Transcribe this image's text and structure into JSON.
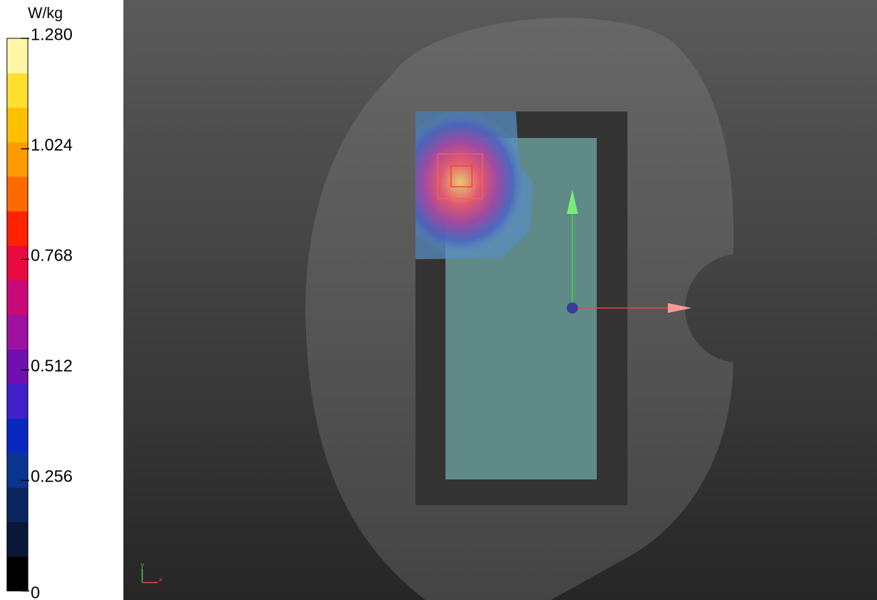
{
  "colorbar": {
    "unit": "W/kg",
    "range": [
      0,
      1.28
    ],
    "ticks": [
      {
        "value": 1.28,
        "label": "1.280"
      },
      {
        "value": 1.024,
        "label": "1.024"
      },
      {
        "value": 0.768,
        "label": "0.768"
      },
      {
        "value": 0.512,
        "label": "0.512"
      },
      {
        "value": 0.256,
        "label": "0.256"
      },
      0
    ],
    "colors": [
      "#000000",
      "#081838",
      "#0a2660",
      "#0a3590",
      "#0a28c0",
      "#4020c8",
      "#7010b0",
      "#a010a0",
      "#c80a78",
      "#e80a40",
      "#ff2200",
      "#ff6a00",
      "#ff9a00",
      "#ffc000",
      "#ffe030",
      "#fff6a8"
    ]
  },
  "axes_triad": {
    "x": "x",
    "y": "y"
  }
}
